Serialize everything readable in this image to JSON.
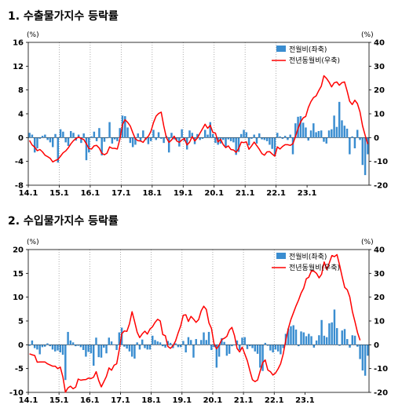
{
  "titles": [
    "1. 수출물가지수 등락률",
    "2. 수입물가지수 등락률"
  ],
  "colors": {
    "bar": "#3A8DD0",
    "line": "#FF0000",
    "axis": "#000000",
    "grid": "#999999"
  },
  "x_tick_labels": [
    "14.1",
    "15.1",
    "16.1",
    "17.1",
    "18.1",
    "19.1",
    "20.1",
    "21.1",
    "22.1",
    "23.1"
  ],
  "chart_data": [
    {
      "type": "bar+line",
      "title": "1. 수출물가지수 등락률",
      "left_unit": "(%)",
      "right_unit": "(%)",
      "left_ylim": [
        -8,
        16
      ],
      "left_ticks": [
        -8,
        -4,
        0,
        4,
        8,
        12,
        16
      ],
      "right_ylim": [
        -20,
        40
      ],
      "right_ticks": [
        -20,
        -10,
        0,
        10,
        20,
        30,
        40
      ],
      "legend_position": "top-right",
      "series": [
        {
          "name": "전월비(좌축)",
          "type": "bar",
          "axis": "left",
          "values": [
            0.8,
            0.5,
            -2.5,
            -1.8,
            -0.2,
            0.3,
            0.5,
            -0.4,
            -0.8,
            -1.6,
            0.6,
            -4.2,
            1.4,
            1.0,
            -0.8,
            -1.4,
            1.1,
            0.8,
            -0.5,
            0.5,
            -0.9,
            0.7,
            -3.8,
            -2.5,
            0.2,
            1.0,
            -0.6,
            1.6,
            -3.0,
            -0.7,
            -0.1,
            2.6,
            -1.0,
            -0.3,
            -0.6,
            1.6,
            3.7,
            3.6,
            1.7,
            -0.9,
            -1.6,
            -1.2,
            0.7,
            -0.6,
            1.2,
            -0.4,
            -1.1,
            -0.6,
            1.3,
            -0.4,
            0.9,
            -0.2,
            -0.9,
            0.3,
            -2.5,
            0.8,
            -0.3,
            -0.4,
            -1.5,
            1.4,
            -0.6,
            -2.0,
            1.2,
            0.8,
            -1.1,
            0.6,
            -0.4,
            -0.2,
            1.3,
            0.5,
            2.6,
            0.6,
            -0.9,
            -1.2,
            -1.0,
            -0.4,
            -1.6,
            -0.3,
            -0.6,
            -0.8,
            -2.9,
            -2.4,
            0.6,
            1.3,
            0.9,
            -1.3,
            -0.2,
            0.5,
            -1.0,
            0.7,
            -0.3,
            -0.4,
            -0.6,
            -1.2,
            -1.9,
            -3.1,
            0.8,
            0.2,
            -0.2,
            0.3,
            -0.4,
            0.5,
            -2.8,
            2.4,
            3.5,
            3.6,
            2.5,
            1.7,
            -0.5,
            1.2,
            2.4,
            0.9,
            1.1,
            1.2,
            -0.7,
            -1.0,
            1.2,
            1.4,
            3.7,
            1.8,
            6.0,
            2.9,
            2.0,
            1.5,
            -2.8,
            0.2,
            -1.8,
            1.3,
            -0.4,
            -4.6,
            -6.3,
            -2.8
          ]
        },
        {
          "name": "전년동월비(우축)",
          "type": "line",
          "axis": "right",
          "values": [
            -1.2,
            -3.1,
            -4.0,
            -5.5,
            -5.0,
            -6.0,
            -7.4,
            -8.0,
            -8.7,
            -10.2,
            -9.6,
            -9.2,
            -7.8,
            -6.4,
            -5.6,
            -4.3,
            -2.6,
            -1.3,
            -0.4,
            0.2,
            -0.4,
            -0.8,
            -2.6,
            -4.6,
            -4.8,
            -3.5,
            -3.3,
            -4.4,
            -6.6,
            -7.2,
            -6.5,
            -3.9,
            -4.5,
            -4.5,
            -4.8,
            -0.6,
            5.5,
            7.5,
            6.4,
            4.9,
            2.0,
            -0.5,
            -1.3,
            -1.4,
            -2.0,
            -0.4,
            0.5,
            2.6,
            6.3,
            9.0,
            10.1,
            10.7,
            4.9,
            0.0,
            -2.0,
            -1.0,
            0.6,
            -1.4,
            -2.0,
            -1.0,
            -0.4,
            -3.1,
            -1.9,
            0.4,
            -1.4,
            -0.2,
            1.8,
            3.7,
            5.6,
            3.9,
            5.2,
            2.2,
            1.9,
            -1.8,
            -0.7,
            -2.9,
            -4.2,
            -3.5,
            -5.0,
            -5.2,
            -6.2,
            -4.6,
            -1.9,
            -2.1,
            -1.8,
            -4.9,
            -3.5,
            -1.9,
            -3.4,
            -4.9,
            -6.7,
            -7.4,
            -6.0,
            -5.9,
            -6.9,
            -7.8,
            -3.9,
            -4.8,
            -3.7,
            -3.0,
            -3.0,
            -3.3,
            -2.6,
            0.4,
            3.8,
            6.6,
            8.3,
            8.9,
            12.6,
            15.1,
            16.8,
            17.5,
            19.7,
            21.6,
            26.0,
            24.9,
            23.4,
            21.3,
            23.0,
            23.4,
            22.0,
            23.1,
            23.4,
            19.6,
            15.3,
            13.9,
            15.7,
            14.3,
            10.8,
            4.9,
            0.9,
            -2.7
          ]
        }
      ]
    },
    {
      "type": "bar+line",
      "title": "2. 수입물가지수 등락률",
      "left_unit": "(%)",
      "right_unit": "(%)",
      "left_ylim": [
        -10,
        20
      ],
      "left_ticks": [
        -10,
        -5,
        0,
        5,
        10,
        15,
        20
      ],
      "right_ylim": [
        -20,
        40
      ],
      "right_ticks": [
        -20,
        -10,
        0,
        10,
        20,
        30,
        40
      ],
      "legend_position": "top-right",
      "series": [
        {
          "name": "전월비(좌축)",
          "type": "bar",
          "axis": "left",
          "values": [
            -0.2,
            0.9,
            -0.7,
            -1.0,
            -2.0,
            -0.5,
            -0.4,
            0.3,
            -0.3,
            -1.0,
            -1.4,
            -1.2,
            -1.6,
            -2.1,
            -7.4,
            2.7,
            0.9,
            0.5,
            -0.3,
            -0.2,
            -0.5,
            -1.1,
            -2.5,
            -1.5,
            -1.8,
            -4.4,
            1.5,
            -2.6,
            -2.7,
            -0.6,
            -1.8,
            1.5,
            0.7,
            0.1,
            -1.1,
            2.6,
            3.6,
            -0.4,
            -0.8,
            -1.4,
            -2.5,
            -2.9,
            0.5,
            -1.0,
            1.1,
            -0.7,
            -1.0,
            -1.0,
            1.9,
            1.0,
            0.7,
            0.5,
            -0.3,
            -0.6,
            0.8,
            0.4,
            -0.7,
            0.3,
            -0.5,
            -0.5,
            0.8,
            -1.6,
            1.6,
            1.0,
            -2.7,
            1.2,
            -0.1,
            1.0,
            2.6,
            1.0,
            2.7,
            -1.1,
            -0.5,
            -4.8,
            -2.5,
            1.4,
            0.6,
            -2.3,
            -1.9,
            -0.3,
            -0.1,
            0.9,
            -1.1,
            1.5,
            1.6,
            -0.9,
            -0.3,
            -0.7,
            -1.4,
            -1.9,
            -4.8,
            -5.5,
            0.4,
            -0.2,
            -1.2,
            -1.6,
            -1.0,
            -1.4,
            -2.0,
            -0.7,
            2.3,
            3.4,
            3.9,
            4.1,
            3.2,
            -0.3,
            2.8,
            2.6,
            1.8,
            2.3,
            1.8,
            -0.6,
            0.9,
            2.0,
            5.2,
            1.9,
            1.6,
            4.5,
            4.7,
            7.4,
            3.5,
            -0.2,
            3.0,
            3.3,
            1.2,
            -0.6,
            2.0,
            1.9,
            -0.4,
            -3.0,
            -5.4,
            -6.5,
            -2.3
          ]
        },
        {
          "name": "전년동월비(우축)",
          "type": "line",
          "axis": "right",
          "values": [
            -3.8,
            -4.2,
            -4.5,
            -7.3,
            -7.2,
            -7.2,
            -7.2,
            -8.0,
            -8.5,
            -9.0,
            -9.0,
            -10.0,
            -9.4,
            -13.5,
            -19.9,
            -18.1,
            -17.4,
            -18.5,
            -17.8,
            -14.4,
            -14.9,
            -14.7,
            -14.6,
            -14.0,
            -14.2,
            -13.6,
            -11.3,
            -15.0,
            -17.7,
            -15.5,
            -13.3,
            -9.7,
            -10.7,
            -8.6,
            -8.0,
            -2.3,
            4.7,
            5.8,
            5.6,
            8.8,
            13.9,
            9.8,
            5.3,
            3.0,
            4.6,
            5.7,
            4.5,
            6.6,
            7.6,
            9.4,
            10.7,
            10.0,
            4.3,
            3.8,
            -0.7,
            -1.5,
            -0.4,
            1.6,
            5.0,
            8.0,
            12.4,
            12.6,
            9.8,
            11.9,
            10.8,
            9.4,
            10.6,
            14.3,
            16.2,
            14.8,
            9.2,
            6.9,
            0.4,
            -1.7,
            -0.2,
            2.2,
            2.7,
            3.5,
            6.2,
            7.3,
            3.8,
            -1.5,
            -3.0,
            -1.0,
            -3.8,
            -6.7,
            -10.9,
            -14.7,
            -15.5,
            -14.8,
            -11.1,
            -7.5,
            -6.4,
            -10.6,
            -11.3,
            -12.7,
            -11.9,
            -10.1,
            -8.0,
            -3.9,
            1.8,
            6.8,
            10.6,
            13.4,
            16.3,
            18.8,
            21.7,
            23.8,
            27.7,
            28.4,
            31.0,
            30.9,
            30.0,
            28.1,
            29.6,
            34.8,
            31.6,
            34.4,
            37.5,
            37.0,
            37.9,
            33.5,
            28.7,
            24.1,
            23.1,
            20.1,
            14.0,
            9.7,
            5.2,
            1.9
          ]
        }
      ]
    }
  ]
}
